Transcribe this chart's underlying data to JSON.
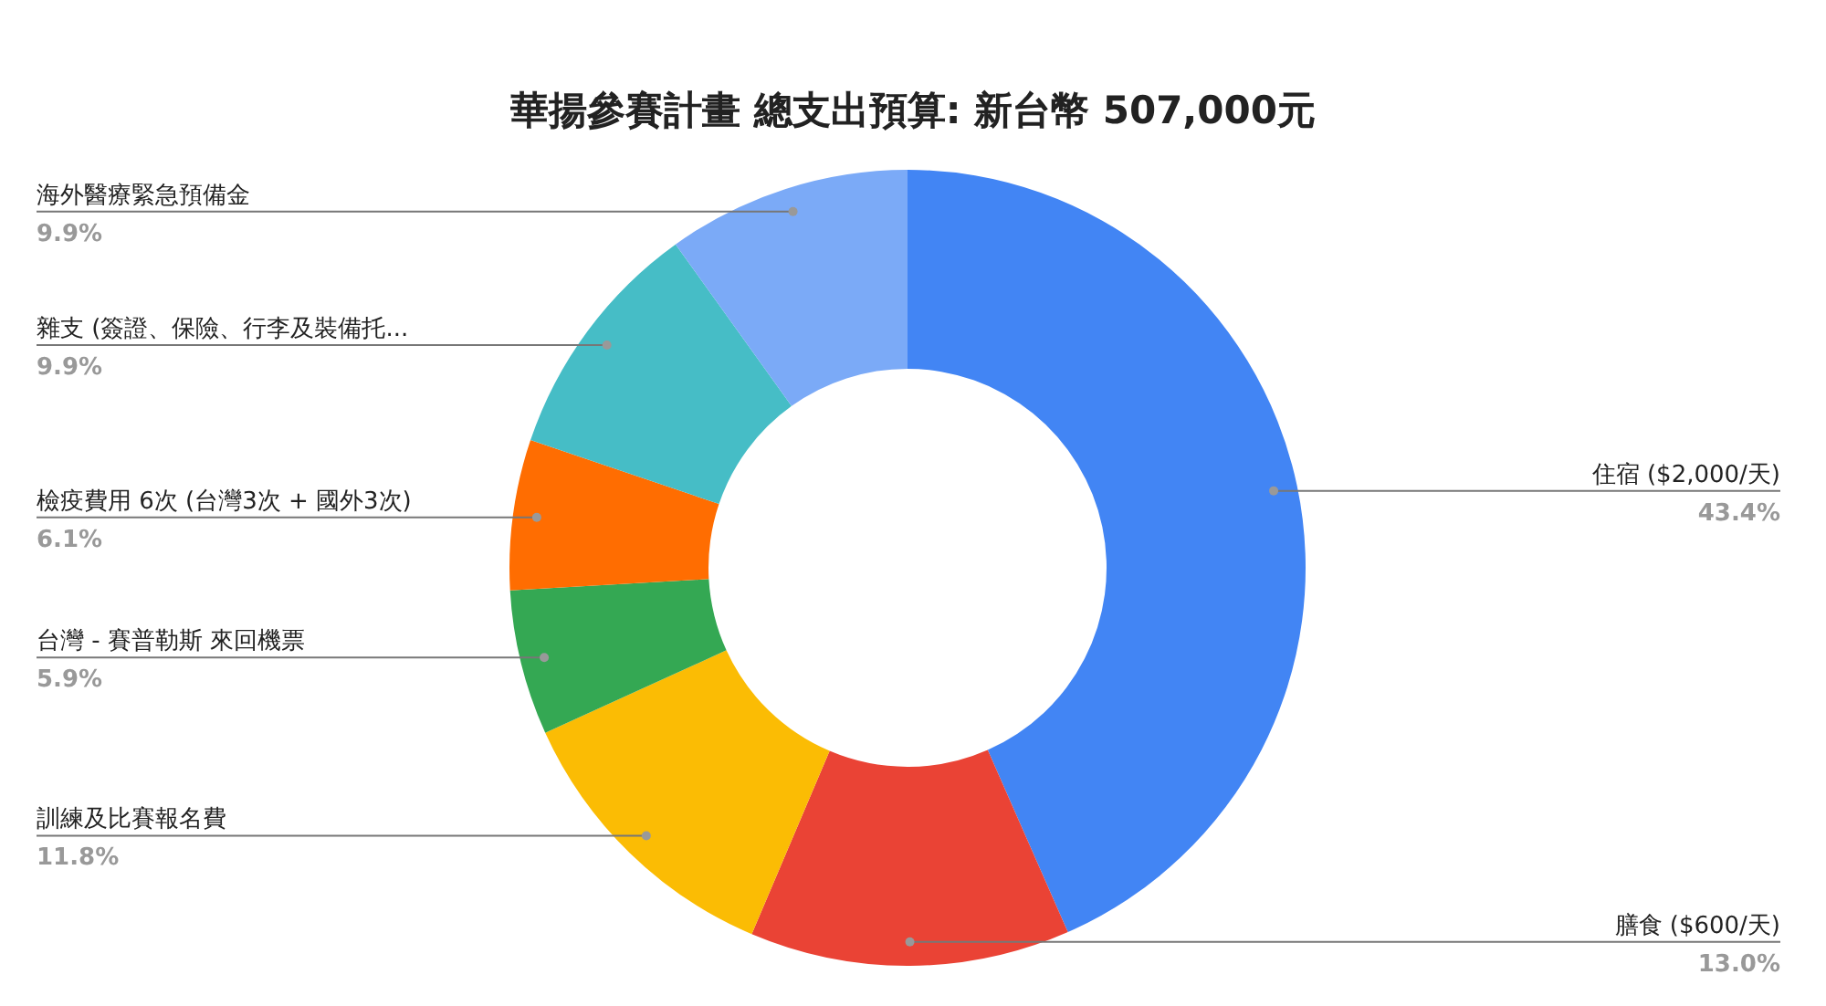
{
  "chart_data": {
    "type": "donut",
    "title": "華揚參賽計畫 總支出預算: 新台幣 507,000元",
    "categories": [
      "住宿 ($2,000/天)",
      "膳食 ($600/天)",
      "訓練及比賽報名費",
      "台灣 - 賽普勒斯 來回機票",
      "檢疫費用 6次 (台灣3次 + 國外3次)",
      "雜支 (簽證、保險、行李及裝備托...",
      "海外醫療緊急預備金"
    ],
    "values": [
      43.4,
      13.0,
      11.8,
      5.9,
      6.1,
      9.9,
      9.9
    ],
    "value_labels": [
      "43.4%",
      "13.0%",
      "11.8%",
      "5.9%",
      "6.1%",
      "9.9%",
      "9.9%"
    ],
    "colors": [
      "#4285f4",
      "#ea4335",
      "#fbbc04",
      "#34a853",
      "#ff6d01",
      "#46bdc6",
      "#7baaf7"
    ],
    "legend": false
  }
}
